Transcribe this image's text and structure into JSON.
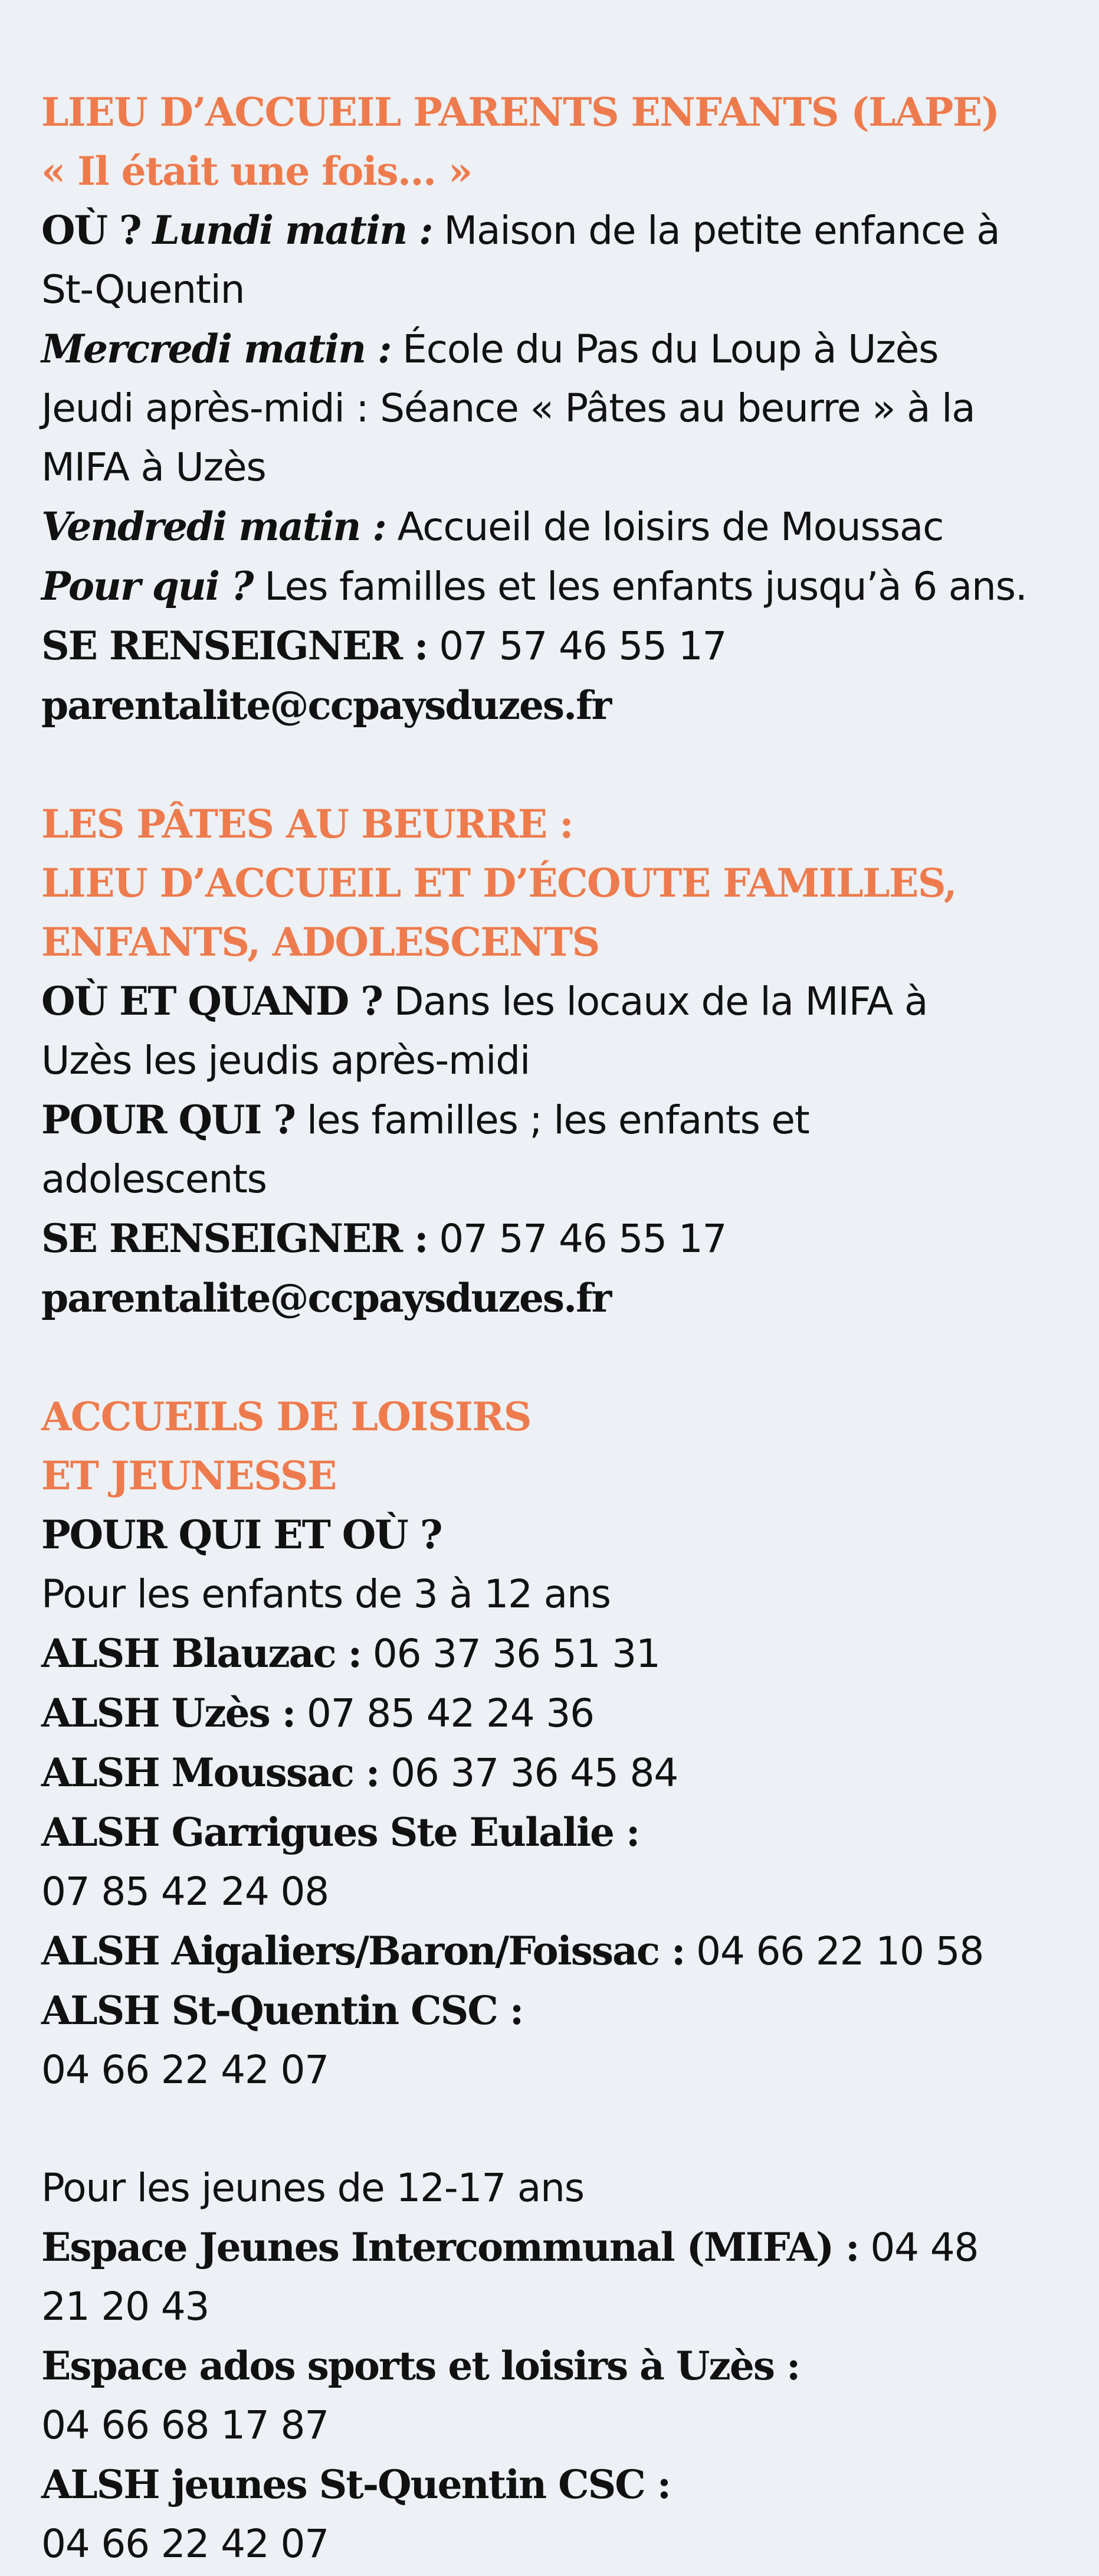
{
  "lape": {
    "title_line1": "LIEU D’ACCUEIL PARENTS ENFANTS (LAPE)",
    "title_line2": "« Il était une fois… »",
    "ou_label": "OÙ ?",
    "lundi_label": "Lundi matin :",
    "lundi_text": "Maison de la petite enfance à",
    "lundi_text2": "St-Quentin",
    "mercredi_label": "Mercredi matin :",
    "mercredi_text": "École du Pas du Loup à Uzès",
    "jeudi_text": "Jeudi après-midi : Séance « Pâtes au beurre » à la",
    "jeudi_text2": "MIFA à Uzès",
    "vendredi_label": "Vendredi matin :",
    "vendredi_text": "Accueil de loisirs de Moussac",
    "pour_qui_label": "Pour qui ?",
    "pour_qui_text": "Les familles et les enfants jusqu’à 6 ans.",
    "renseigner_label": "SE RENSEIGNER :",
    "phone": "07 57 46 55 17",
    "email": "parentalite@ccpaysduzes.fr"
  },
  "pates": {
    "title_line1": "LES PÂTES AU BEURRE :",
    "title_line2": "LIEU D’ACCUEIL ET D’ÉCOUTE FAMILLES,",
    "title_line3": "ENFANTS, ADOLESCENTS",
    "ou_quand_label": "OÙ ET QUAND ?",
    "ou_quand_text": "Dans les locaux de la MIFA à",
    "ou_quand_text2": "Uzès les jeudis après-midi",
    "pour_qui_label": "POUR QUI ?",
    "pour_qui_text": "les familles ; les enfants et",
    "pour_qui_text2": "adolescents",
    "renseigner_label": "SE RENSEIGNER :",
    "phone": "07 57 46 55 17",
    "email": "parentalite@ccpaysduzes.fr"
  },
  "alsh": {
    "title_line1": "ACCUEILS DE LOISIRS",
    "title_line2": "ET JEUNESSE",
    "pour_qui_ou_label": "POUR QUI ET OÙ ?",
    "enfants_text": "Pour les enfants de 3 à 12 ans",
    "blauzac_label": "ALSH Blauzac :",
    "blauzac_phone": "06 37 36 51 31",
    "uzes_label": "ALSH Uzès :",
    "uzes_phone": "07 85 42 24 36",
    "moussac_label": "ALSH Moussac :",
    "moussac_phone": "06 37 36 45 84",
    "garrigues_label": "ALSH Garrigues Ste Eulalie :",
    "garrigues_phone": "07 85 42 24 08",
    "aigaliers_label": "ALSH Aigaliers/Baron/Foissac :",
    "aigaliers_phone": "04 66 22 10 58",
    "stquentin_label": "ALSH St-Quentin CSC :",
    "stquentin_phone": "04 66 22 42 07",
    "jeunes_text": "Pour les jeunes de 12-17 ans",
    "espace_jeunes_label": "Espace Jeunes Intercommunal (MIFA) :",
    "espace_jeunes_phone_part1": "04 48",
    "espace_jeunes_phone_part2": "21 20 43",
    "espace_ados_label": "Espace ados sports et loisirs à Uzès :",
    "espace_ados_phone": "04 66 68 17 87",
    "jeunes_stquentin_label": "ALSH jeunes St-Quentin CSC :",
    "jeunes_stquentin_phone": "04 66 22 42 07"
  }
}
